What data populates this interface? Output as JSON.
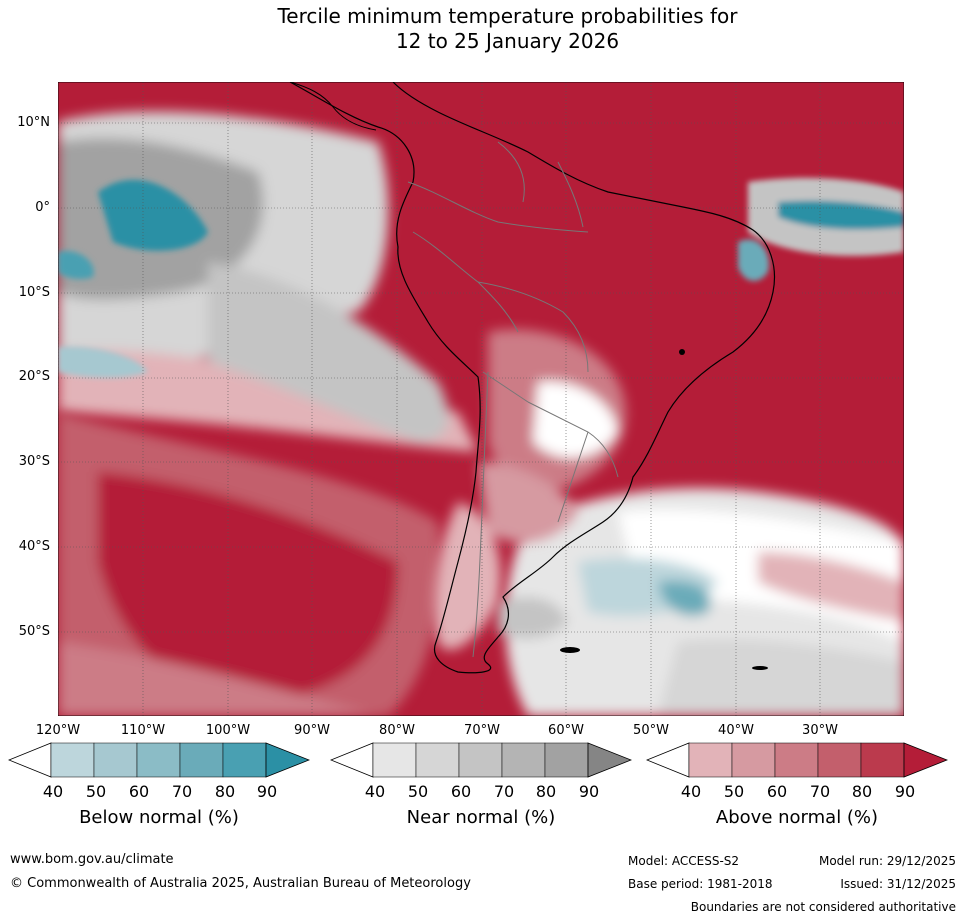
{
  "title": {
    "line1": "Tercile minimum temperature probabilities for",
    "line2": "12 to 25 January 2026"
  },
  "map": {
    "lat_labels": [
      "10°N",
      "0°",
      "10°S",
      "20°S",
      "30°S",
      "40°S",
      "50°S"
    ],
    "lon_labels": [
      "120°W",
      "110°W",
      "100°W",
      "90°W",
      "80°W",
      "70°W",
      "60°W",
      "50°W",
      "40°W",
      "30°W"
    ]
  },
  "legends": {
    "below": {
      "title": "Below normal (%)",
      "ticks": [
        "40",
        "50",
        "60",
        "70",
        "80",
        "90"
      ],
      "colors": [
        "#ffffff",
        "#bdd6dc",
        "#a6c8d0",
        "#8bbcc6",
        "#6aabb9",
        "#49a0b2",
        "#2b90a5"
      ]
    },
    "near": {
      "title": "Near normal (%)",
      "ticks": [
        "40",
        "50",
        "60",
        "70",
        "80",
        "90"
      ],
      "colors": [
        "#ffffff",
        "#e6e6e6",
        "#d6d6d6",
        "#c4c4c4",
        "#b4b4b4",
        "#a2a2a2",
        "#858585"
      ]
    },
    "above": {
      "title": "Above normal (%)",
      "ticks": [
        "40",
        "50",
        "60",
        "70",
        "80",
        "90"
      ],
      "colors": [
        "#ffffff",
        "#e2b3b8",
        "#d69aa1",
        "#cc7c86",
        "#c35f6c",
        "#bb3a4d",
        "#b41d38"
      ]
    }
  },
  "footer": {
    "url": "www.bom.gov.au/climate",
    "copyright": "© Commonwealth of Australia 2025, Australian Bureau of Meteorology",
    "model": "Model: ACCESS-S2",
    "base_period": "Base period: 1981-2018",
    "model_run": "Model run: 29/12/2025",
    "issued": "Issued: 31/12/2025",
    "disclaimer": "Boundaries are not considered authoritative"
  }
}
